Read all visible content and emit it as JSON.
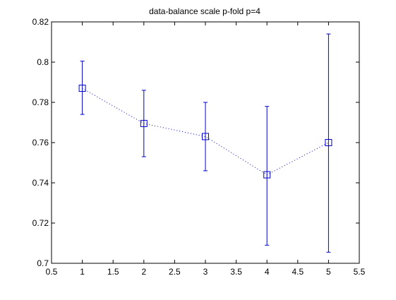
{
  "chart_data": {
    "type": "line",
    "title": "data-balance scale  p-fold p=4",
    "xlabel": "",
    "ylabel": "",
    "xlim": [
      0.5,
      5.5
    ],
    "ylim": [
      0.7,
      0.82
    ],
    "x_ticks": [
      "0.5",
      "1",
      "1.5",
      "2",
      "2.5",
      "3",
      "3.5",
      "4",
      "4.5",
      "5",
      "5.5"
    ],
    "y_ticks": [
      "0.7",
      "0.72",
      "0.74",
      "0.76",
      "0.78",
      "0.8",
      "0.82"
    ],
    "grid": false,
    "legend": null,
    "series": [
      {
        "x": [
          1,
          2,
          3,
          4,
          5
        ],
        "y": [
          0.787,
          0.7695,
          0.763,
          0.744,
          0.76
        ],
        "err_low": [
          0.774,
          0.753,
          0.746,
          0.709,
          0.7055
        ],
        "err_high": [
          0.8005,
          0.786,
          0.78,
          0.778,
          0.814
        ],
        "marker": "square",
        "line_style": "dotted",
        "color": "#0000cc"
      }
    ]
  }
}
